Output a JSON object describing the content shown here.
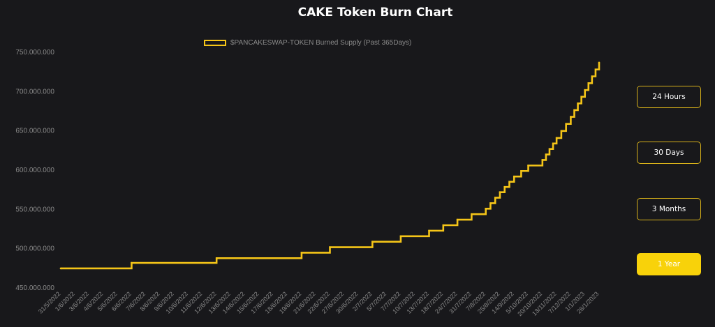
{
  "title": "CAKE Token Burn Chart",
  "legend_label": "$PANCAKESWAP-TOKEN Burned Supply (Past 365Days)",
  "colors": {
    "line": "#f5c518",
    "background": "#18181b",
    "tick_text": "#8a8a8a",
    "active_button": "#f8d20a"
  },
  "range_buttons": [
    {
      "label": "24 Hours",
      "active": false
    },
    {
      "label": "30 Days",
      "active": false
    },
    {
      "label": "3 Months",
      "active": false
    },
    {
      "label": "1 Year",
      "active": true
    }
  ],
  "chart_data": {
    "type": "line",
    "step": true,
    "grid": false,
    "legend_position": "top-center",
    "ylim": [
      450000000,
      750000000
    ],
    "yticks": [
      {
        "value": 450000000,
        "label": "450.000.000"
      },
      {
        "value": 500000000,
        "label": "500.000.000"
      },
      {
        "value": 550000000,
        "label": "550.000.000"
      },
      {
        "value": 600000000,
        "label": "600.000.000"
      },
      {
        "value": 650000000,
        "label": "650.000.000"
      },
      {
        "value": 700000000,
        "label": "700.000.000"
      },
      {
        "value": 750000000,
        "label": "750.000.000"
      }
    ],
    "xticks": [
      "31/5/2022",
      "1/6/2022",
      "3/6/2022",
      "4/6/2022",
      "5/6/2022",
      "6/6/2022",
      "7/6/2022",
      "8/6/2022",
      "9/6/2022",
      "10/6/2022",
      "11/6/2022",
      "12/6/2022",
      "13/6/2022",
      "14/6/2022",
      "15/6/2022",
      "17/6/2022",
      "18/6/2022",
      "19/6/2022",
      "21/6/2022",
      "22/6/2022",
      "27/6/2022",
      "30/6/2022",
      "2/7/2022",
      "5/7/2022",
      "7/7/2022",
      "10/7/2022",
      "13/7/2022",
      "18/7/2022",
      "24/7/2022",
      "31/7/2022",
      "7/8/2022",
      "25/8/2022",
      "14/9/2022",
      "5/10/2022",
      "20/10/2022",
      "13/11/2022",
      "7/12/2022",
      "1/1/2023",
      "26/1/2023"
    ],
    "series": [
      {
        "name": "$PANCAKESWAP-TOKEN Burned Supply (Past 365Days)",
        "points": [
          [
            "31/5/2022",
            474000000
          ],
          [
            "6/6/2022",
            481000000
          ],
          [
            "12/6/2022",
            487000000
          ],
          [
            "19/6/2022",
            494000000
          ],
          [
            "22/6/2022",
            501000000
          ],
          [
            "2/7/2022",
            508000000
          ],
          [
            "7/7/2022",
            515000000
          ],
          [
            "13/7/2022",
            522000000
          ],
          [
            "18/7/2022",
            529000000
          ],
          [
            "24/7/2022",
            536000000
          ],
          [
            "31/7/2022",
            543000000
          ],
          [
            "7/8/2022",
            550000000
          ],
          [
            "25/8/2022",
            571000000
          ],
          [
            "14/9/2022",
            591000000
          ],
          [
            "5/10/2022",
            605000000
          ],
          [
            "20/10/2022",
            612000000
          ],
          [
            "13/11/2022",
            640000000
          ],
          [
            "7/12/2022",
            667000000
          ],
          [
            "1/1/2023",
            701000000
          ],
          [
            "26/1/2023",
            736000000
          ]
        ]
      }
    ]
  }
}
